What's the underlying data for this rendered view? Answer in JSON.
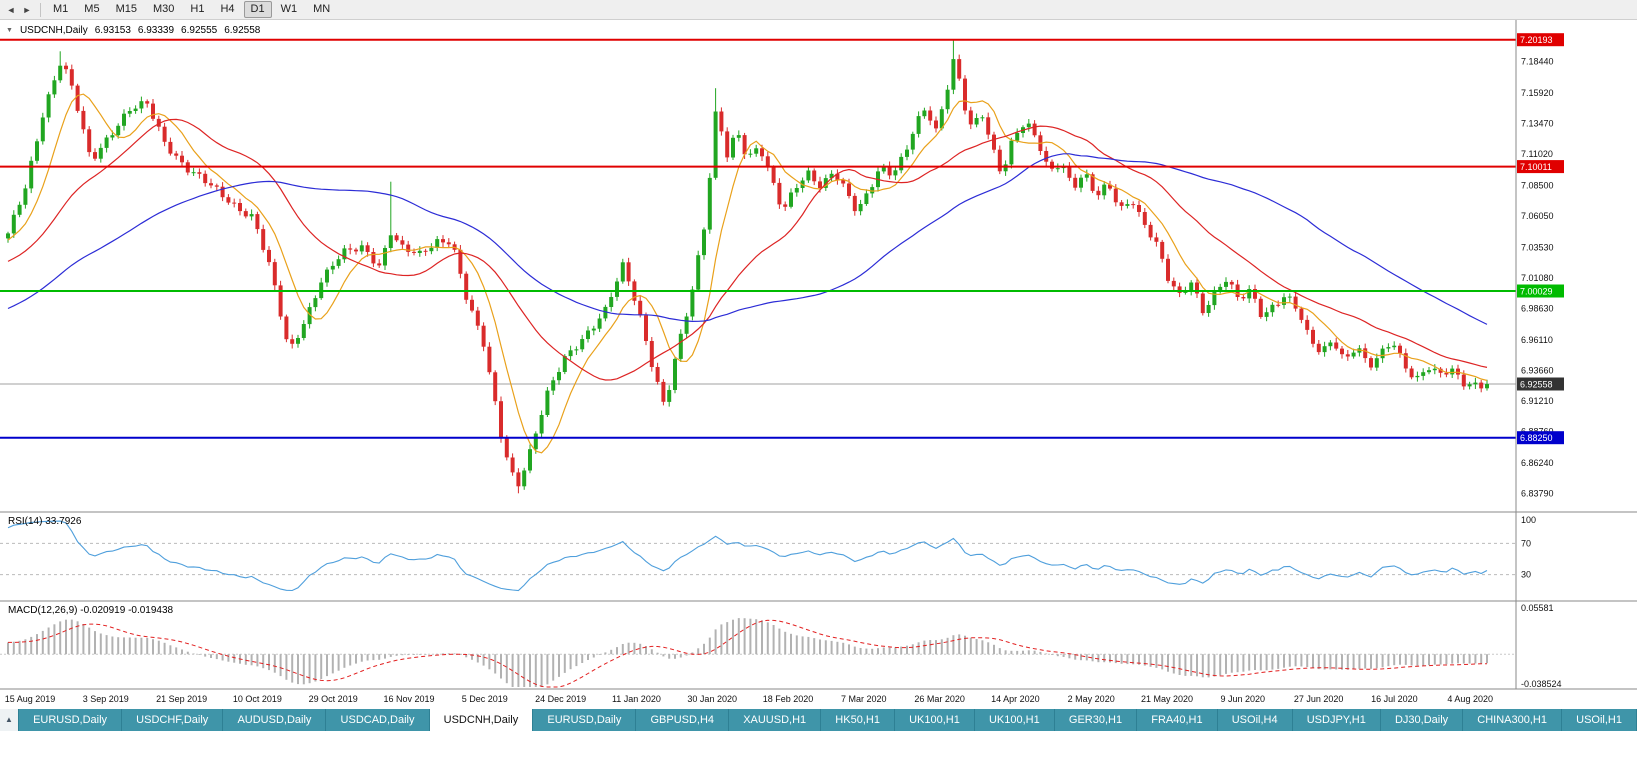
{
  "toolbar": {
    "nav_back": "◄",
    "nav_forward": "►",
    "timeframes": [
      "M1",
      "M5",
      "M15",
      "M30",
      "H1",
      "H4",
      "D1",
      "W1",
      "MN"
    ],
    "active_timeframe": "D1"
  },
  "chart_header": {
    "collapse_icon": "▼",
    "title": "USDCNH,Daily",
    "open": "6.93153",
    "high": "6.93339",
    "low": "6.92555",
    "close": "6.92558"
  },
  "chart_data": {
    "type": "candlestick",
    "symbol": "USDCNH",
    "timeframe": "Daily",
    "bars": 256,
    "last_close": 6.92558,
    "price_range": [
      6.8245,
      7.2065
    ],
    "colors": {
      "up": "#21a621",
      "down": "#d92b2b",
      "bid_line": "#a0a0a0",
      "bid_label_bg": "#333333",
      "axis_text": "#111111"
    },
    "anchors": [
      [
        0.0,
        7.045
      ],
      [
        0.012,
        7.085
      ],
      [
        0.024,
        7.145
      ],
      [
        0.036,
        7.185
      ],
      [
        0.044,
        7.16
      ],
      [
        0.056,
        7.105
      ],
      [
        0.068,
        7.125
      ],
      [
        0.082,
        7.145
      ],
      [
        0.094,
        7.15
      ],
      [
        0.106,
        7.12
      ],
      [
        0.12,
        7.1
      ],
      [
        0.136,
        7.085
      ],
      [
        0.152,
        7.07
      ],
      [
        0.166,
        7.06
      ],
      [
        0.178,
        7.015
      ],
      [
        0.19,
        6.95
      ],
      [
        0.2,
        6.975
      ],
      [
        0.212,
        7.01
      ],
      [
        0.226,
        7.03
      ],
      [
        0.24,
        7.035
      ],
      [
        0.252,
        7.02
      ],
      [
        0.258,
        7.05
      ],
      [
        0.266,
        7.035
      ],
      [
        0.278,
        7.028
      ],
      [
        0.29,
        7.04
      ],
      [
        0.3,
        7.042
      ],
      [
        0.31,
        6.995
      ],
      [
        0.322,
        6.955
      ],
      [
        0.334,
        6.88
      ],
      [
        0.344,
        6.843
      ],
      [
        0.354,
        6.875
      ],
      [
        0.364,
        6.915
      ],
      [
        0.376,
        6.945
      ],
      [
        0.39,
        6.965
      ],
      [
        0.404,
        6.985
      ],
      [
        0.416,
        7.02
      ],
      [
        0.426,
        6.985
      ],
      [
        0.436,
        6.94
      ],
      [
        0.444,
        6.908
      ],
      [
        0.452,
        6.95
      ],
      [
        0.462,
        6.995
      ],
      [
        0.472,
        7.06
      ],
      [
        0.479,
        7.15
      ],
      [
        0.486,
        7.11
      ],
      [
        0.493,
        7.13
      ],
      [
        0.5,
        7.105
      ],
      [
        0.508,
        7.115
      ],
      [
        0.516,
        7.09
      ],
      [
        0.524,
        7.065
      ],
      [
        0.532,
        7.085
      ],
      [
        0.541,
        7.095
      ],
      [
        0.55,
        7.082
      ],
      [
        0.558,
        7.095
      ],
      [
        0.566,
        7.082
      ],
      [
        0.574,
        7.065
      ],
      [
        0.582,
        7.082
      ],
      [
        0.59,
        7.1
      ],
      [
        0.598,
        7.092
      ],
      [
        0.606,
        7.108
      ],
      [
        0.614,
        7.135
      ],
      [
        0.621,
        7.15
      ],
      [
        0.627,
        7.128
      ],
      [
        0.634,
        7.158
      ],
      [
        0.64,
        7.188
      ],
      [
        0.646,
        7.15
      ],
      [
        0.652,
        7.128
      ],
      [
        0.658,
        7.145
      ],
      [
        0.665,
        7.118
      ],
      [
        0.672,
        7.095
      ],
      [
        0.68,
        7.125
      ],
      [
        0.688,
        7.135
      ],
      [
        0.696,
        7.12
      ],
      [
        0.704,
        7.095
      ],
      [
        0.712,
        7.105
      ],
      [
        0.72,
        7.085
      ],
      [
        0.728,
        7.095
      ],
      [
        0.736,
        7.075
      ],
      [
        0.744,
        7.085
      ],
      [
        0.752,
        7.065
      ],
      [
        0.76,
        7.075
      ],
      [
        0.768,
        7.055
      ],
      [
        0.776,
        7.04
      ],
      [
        0.784,
        7.01
      ],
      [
        0.792,
        6.995
      ],
      [
        0.8,
        7.008
      ],
      [
        0.808,
        6.985
      ],
      [
        0.816,
        7.0
      ],
      [
        0.824,
        7.01
      ],
      [
        0.832,
        6.992
      ],
      [
        0.84,
        7.0
      ],
      [
        0.848,
        6.98
      ],
      [
        0.856,
        6.99
      ],
      [
        0.864,
        6.998
      ],
      [
        0.872,
        6.985
      ],
      [
        0.88,
        6.96
      ],
      [
        0.888,
        6.95
      ],
      [
        0.896,
        6.962
      ],
      [
        0.904,
        6.945
      ],
      [
        0.912,
        6.958
      ],
      [
        0.92,
        6.938
      ],
      [
        0.928,
        6.948
      ],
      [
        0.936,
        6.96
      ],
      [
        0.944,
        6.942
      ],
      [
        0.952,
        6.93
      ],
      [
        0.96,
        6.94
      ],
      [
        0.968,
        6.932
      ],
      [
        0.976,
        6.936
      ],
      [
        0.984,
        6.926
      ],
      [
        1.0,
        6.9256
      ]
    ],
    "spikes": [
      [
        9,
        "h",
        7.1926
      ],
      [
        66,
        "h",
        7.088
      ],
      [
        88,
        "l",
        6.8379
      ],
      [
        122,
        "h",
        7.163
      ],
      [
        163,
        "h",
        7.2019
      ]
    ],
    "prehistory": {
      "bars": 80,
      "start_price": 6.885
    },
    "moving_averages": [
      {
        "name": "ma-fast",
        "period": 8,
        "color": "#e9a11b"
      },
      {
        "name": "ma-mid",
        "period": 25,
        "color": "#dd2424"
      },
      {
        "name": "ma-slow",
        "period": 62,
        "color": "#2c2cd6"
      }
    ],
    "hlines": [
      {
        "price": 7.20193,
        "label": "7.20193",
        "color": "#e00000"
      },
      {
        "price": 7.10011,
        "label": "7.10011",
        "color": "#e00000"
      },
      {
        "price": 7.00029,
        "label": "7.00029",
        "color": "#00bb00"
      },
      {
        "price": 6.8825,
        "label": "6.88250",
        "color": "#0000cc"
      }
    ],
    "bid_line": {
      "price": 6.92558,
      "label": "6.92558"
    },
    "y_axis_labels": [
      "7.18440",
      "7.15920",
      "7.13470",
      "7.11020",
      "7.08500",
      "7.06050",
      "7.03530",
      "7.01080",
      "6.98630",
      "6.96110",
      "6.93660",
      "6.91210",
      "6.88760",
      "6.86240",
      "6.83790"
    ],
    "x_labels": [
      "15 Aug 2019",
      "3 Sep 2019",
      "21 Sep 2019",
      "10 Oct 2019",
      "29 Oct 2019",
      "16 Nov 2019",
      "5 Dec 2019",
      "24 Dec 2019",
      "11 Jan 2020",
      "30 Jan 2020",
      "18 Feb 2020",
      "7 Mar 2020",
      "26 Mar 2020",
      "14 Apr 2020",
      "2 May 2020",
      "21 May 2020",
      "9 Jun 2020",
      "27 Jun 2020",
      "16 Jul 2020",
      "4 Aug 2020"
    ],
    "rsi": {
      "title": "RSI(14)",
      "value": "33.7926",
      "color": "#4f9fdc",
      "levels": [
        {
          "label": "100",
          "value": 100
        },
        {
          "label": "70",
          "value": 70
        },
        {
          "label": "30",
          "value": 30
        }
      ]
    },
    "macd": {
      "title": "MACD(12,26,9)",
      "value": "-0.020919 -0.019438",
      "top_label": "0.05581",
      "bottom_label": "-0.038524",
      "hist_color": "#b2b2b2",
      "signal_color": "#e22020"
    }
  },
  "tabs": {
    "scroll_icon": "▲",
    "active_index": 4,
    "items": [
      {
        "label": "EURUSD,Daily"
      },
      {
        "label": "USDCHF,Daily"
      },
      {
        "label": "AUDUSD,Daily"
      },
      {
        "label": "USDCAD,Daily"
      },
      {
        "label": "USDCNH,Daily"
      },
      {
        "label": "EURUSD,Daily"
      },
      {
        "label": "GBPUSD,H4"
      },
      {
        "label": "XAUUSD,H1"
      },
      {
        "label": "HK50,H1"
      },
      {
        "label": "UK100,H1"
      },
      {
        "label": "UK100,H1"
      },
      {
        "label": "GER30,H1"
      },
      {
        "label": "FRA40,H1"
      },
      {
        "label": "USOil,H4"
      },
      {
        "label": "USDJPY,H1"
      },
      {
        "label": "DJ30,Daily"
      },
      {
        "label": "CHINA300,H1"
      },
      {
        "label": "USOil,H1"
      }
    ]
  }
}
